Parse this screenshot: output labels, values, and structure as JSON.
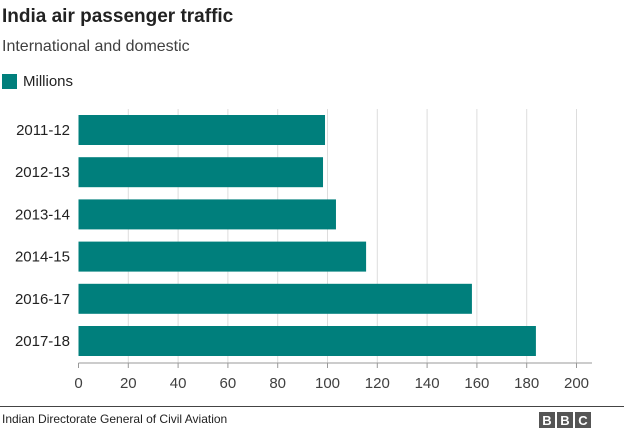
{
  "chart_data": {
    "type": "bar",
    "orientation": "horizontal",
    "title": "India air passenger traffic",
    "subtitle": "International and domestic",
    "categories": [
      "2011-12",
      "2012-13",
      "2013-14",
      "2014-15",
      "2016-17",
      "2017-18"
    ],
    "series": [
      {
        "name": "Millions",
        "values": [
          99,
          98.2,
          103.4,
          115.5,
          158,
          183.7
        ],
        "color": "#007f7c"
      }
    ],
    "xlim": [
      0,
      200
    ],
    "xticks": [
      0,
      20,
      40,
      60,
      80,
      100,
      120,
      140,
      160,
      180,
      200
    ],
    "grid": true,
    "legend_position": "top-left"
  },
  "footer": {
    "source": "Indian Directorate General of Civil Aviation",
    "logo": [
      "B",
      "B",
      "C"
    ]
  }
}
